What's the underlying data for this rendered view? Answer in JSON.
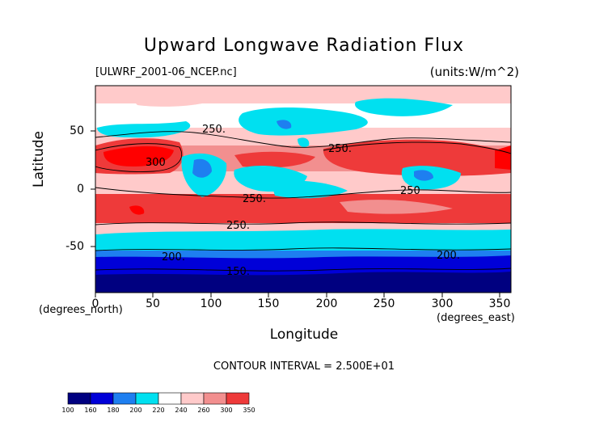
{
  "title": "Upward Longwave Radiation Flux",
  "source_file": "[ULWRF_2001-06_NCEP.nc]",
  "units": "(units:W/m^2)",
  "y_axis": {
    "title": "Latitude",
    "unit": "(degrees_north)",
    "ticks": [
      "50",
      "0",
      "-50"
    ]
  },
  "x_axis": {
    "title": "Longitude",
    "unit": "(degrees_east)",
    "ticks": [
      "0",
      "50",
      "100",
      "150",
      "200",
      "250",
      "300",
      "350"
    ]
  },
  "contour_interval": "CONTOUR INTERVAL = 2.500E+01",
  "contour_labels": [
    "250.",
    "300",
    "250.",
    "250.",
    "250",
    "250.",
    "200.",
    "200.",
    "150."
  ],
  "colorbar": {
    "labels": [
      "100",
      "160",
      "180",
      "200",
      "220",
      "240",
      "260",
      "300",
      "350"
    ],
    "colors": [
      "#000080",
      "#0000d8",
      "#1e7ff0",
      "#00e0f0",
      "#ffffff",
      "#ffcaca",
      "#f28f8f",
      "#ee3a3a",
      "#ff0000"
    ]
  },
  "chart_data": {
    "type": "heatmap",
    "title": "Upward Longwave Radiation Flux",
    "xlabel": "Longitude",
    "ylabel": "Latitude",
    "xlim": [
      0,
      360
    ],
    "ylim": [
      -90,
      90
    ],
    "units": "W/m^2",
    "levels": [
      100,
      160,
      180,
      200,
      220,
      240,
      260,
      300,
      350
    ],
    "latitude_bands": [
      {
        "lat": [
          75,
          90
        ],
        "value": 230
      },
      {
        "lat": [
          55,
          75
        ],
        "value": 235
      },
      {
        "lat": [
          40,
          55
        ],
        "value": 225
      },
      {
        "lat": [
          15,
          40
        ],
        "value": 300
      },
      {
        "lat": [
          -5,
          15
        ],
        "value": 250
      },
      {
        "lat": [
          -25,
          -5
        ],
        "value": 280
      },
      {
        "lat": [
          -40,
          -25
        ],
        "value": 255
      },
      {
        "lat": [
          -55,
          -40
        ],
        "value": 215
      },
      {
        "lat": [
          -70,
          -55
        ],
        "value": 195
      },
      {
        "lat": [
          -90,
          -70
        ],
        "value": 150
      }
    ]
  }
}
